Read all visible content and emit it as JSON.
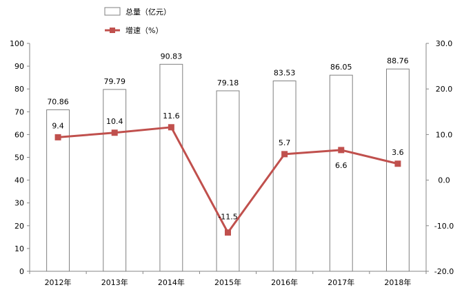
{
  "chart_data": {
    "type": "bar",
    "categories": [
      "2012年",
      "2013年",
      "2014年",
      "2015年",
      "2016年",
      "2017年",
      "2018年"
    ],
    "series": [
      {
        "name": "总量（亿元）",
        "type": "bar",
        "axis": "left",
        "values": [
          70.86,
          79.79,
          90.83,
          79.18,
          83.53,
          86.05,
          88.76
        ],
        "labels": [
          "70.86",
          "79.79",
          "90.83",
          "79.18",
          "83.53",
          "86.05",
          "88.76"
        ]
      },
      {
        "name": "增速（%）",
        "type": "line",
        "axis": "right",
        "values": [
          9.4,
          10.4,
          11.6,
          -11.5,
          5.7,
          6.6,
          3.6
        ],
        "labels": [
          "9.4",
          "10.4",
          "11.6",
          "-11.5",
          "5.7",
          "6.6",
          "3.6"
        ]
      }
    ],
    "y_left": {
      "ylim": [
        0,
        100
      ],
      "ticks": [
        "0",
        "10",
        "20",
        "30",
        "40",
        "50",
        "60",
        "70",
        "80",
        "90",
        "100"
      ]
    },
    "y_right": {
      "ylim": [
        -20,
        30
      ],
      "ticks": [
        "-20.0",
        "-10.0",
        "0.0",
        "10.0",
        "20.0",
        "30.0"
      ]
    },
    "legend": "top-center",
    "grid": false,
    "colors": {
      "bar_fill": "#ffffff",
      "bar_stroke": "#7f7f7f",
      "line": "#c0504d",
      "axis": "#868686",
      "text": "#000000"
    }
  }
}
